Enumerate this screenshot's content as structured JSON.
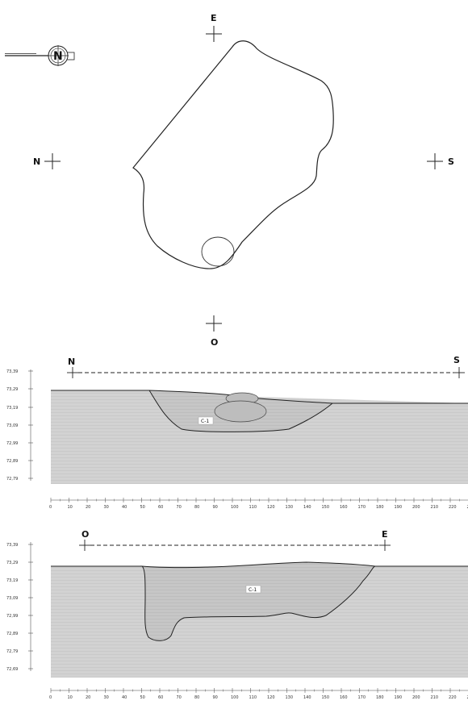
{
  "plan": {
    "labels": {
      "top": "E",
      "left": "N",
      "right": "S",
      "bottom": "O"
    },
    "north_arrow": "N"
  },
  "profile1": {
    "left_label": "N",
    "right_label": "S",
    "fill_label": "C-1",
    "y_ticks": [
      "73,39",
      "73,29",
      "73,19",
      "73,09",
      "72,99",
      "72,89",
      "72,79"
    ]
  },
  "profile2": {
    "left_label": "O",
    "right_label": "E",
    "fill_label": "C-1",
    "y_ticks": [
      "73,39",
      "73,29",
      "73,19",
      "73,09",
      "72,99",
      "72,89",
      "72,79",
      "72,69"
    ]
  },
  "x_scale_labels": [
    "0",
    "10",
    "20",
    "30",
    "40",
    "50",
    "60",
    "70",
    "80",
    "90",
    "100",
    "110",
    "120",
    "130",
    "140",
    "150",
    "160",
    "170",
    "180",
    "190",
    "200",
    "210",
    "220",
    "23"
  ],
  "x_scale_labels_2": [
    "0",
    "10",
    "20",
    "30",
    "40",
    "50",
    "60",
    "70",
    "80",
    "90",
    "100",
    "110",
    "120",
    "130",
    "140",
    "150",
    "160",
    "170",
    "180",
    "190",
    "200",
    "210",
    "220",
    "2"
  ],
  "colors": {
    "soil": "#d4d4d4",
    "ink": "#222222",
    "fill": "#c0c0c0",
    "stone": "#aaaaaa"
  }
}
